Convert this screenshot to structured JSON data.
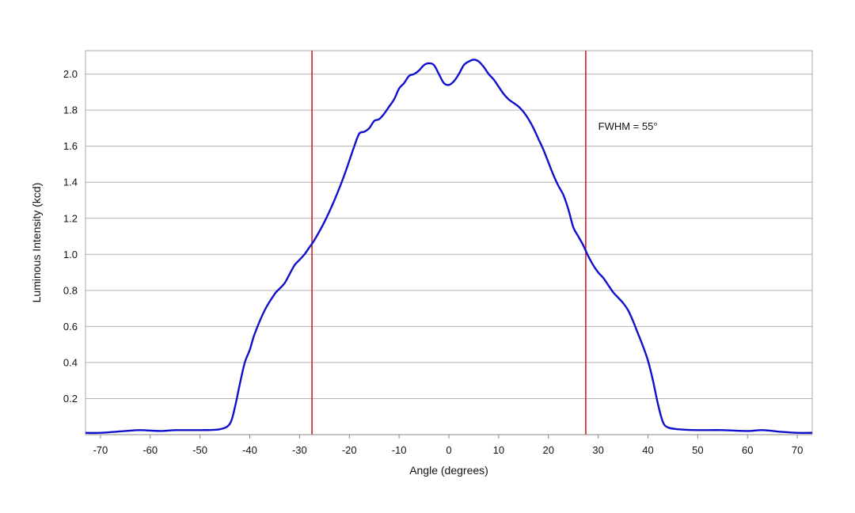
{
  "chart_data": {
    "type": "line",
    "title": "",
    "xlabel": "Angle (degrees)",
    "ylabel": "Luminous Intensity (kcd)",
    "xlim": [
      -73,
      73
    ],
    "ylim": [
      0,
      2.13
    ],
    "xticks": [
      -70,
      -60,
      -50,
      -40,
      -30,
      -20,
      -10,
      0,
      10,
      20,
      30,
      40,
      50,
      60,
      70
    ],
    "yticks": [
      0.2,
      0.4,
      0.6,
      0.8,
      1.0,
      1.2,
      1.4,
      1.6,
      1.8,
      2.0
    ],
    "ytick_labels": [
      "0.2",
      "0.4",
      "0.6",
      "0.8",
      "1.0",
      "1.2",
      "1.4",
      "1.6",
      "1.8",
      "2.0"
    ],
    "grid": "horizontal",
    "line_color": "#1010cc",
    "marker_color": "#cc2222",
    "series": [
      {
        "x": [
          -73,
          -70,
          -65,
          -62,
          -58,
          -55,
          -50,
          -46,
          -44,
          -43,
          -42,
          -41,
          -40,
          -39,
          -37,
          -35,
          -34,
          -33,
          -32,
          -31,
          -30,
          -29,
          -28,
          -27,
          -25,
          -23,
          -21,
          -19,
          -18,
          -17,
          -16,
          -15,
          -14,
          -13,
          -12,
          -11,
          -10,
          -9,
          -8,
          -7,
          -6,
          -5,
          -4,
          -3,
          -2,
          -1,
          0,
          1,
          2,
          3,
          4,
          5,
          6,
          7,
          8,
          9,
          10,
          11,
          12,
          13,
          14,
          15,
          16,
          17,
          18,
          19,
          20,
          21,
          22,
          23,
          24,
          25,
          26,
          27,
          28,
          29,
          30,
          31,
          32,
          33,
          34,
          35,
          36,
          37,
          38,
          39,
          40,
          41,
          42,
          43,
          44,
          46,
          50,
          55,
          60,
          63,
          67,
          70,
          73
        ],
        "y": [
          0.01,
          0.01,
          0.02,
          0.025,
          0.02,
          0.025,
          0.025,
          0.03,
          0.06,
          0.15,
          0.28,
          0.4,
          0.47,
          0.56,
          0.69,
          0.78,
          0.81,
          0.84,
          0.89,
          0.94,
          0.97,
          1.0,
          1.04,
          1.08,
          1.18,
          1.3,
          1.44,
          1.6,
          1.67,
          1.68,
          1.7,
          1.74,
          1.75,
          1.78,
          1.82,
          1.86,
          1.92,
          1.95,
          1.99,
          2.0,
          2.02,
          2.05,
          2.06,
          2.05,
          2.0,
          1.95,
          1.94,
          1.96,
          2.0,
          2.05,
          2.07,
          2.08,
          2.07,
          2.04,
          2.0,
          1.97,
          1.93,
          1.89,
          1.86,
          1.84,
          1.82,
          1.79,
          1.75,
          1.7,
          1.64,
          1.58,
          1.51,
          1.44,
          1.38,
          1.33,
          1.25,
          1.15,
          1.1,
          1.05,
          0.99,
          0.94,
          0.9,
          0.87,
          0.83,
          0.79,
          0.76,
          0.73,
          0.69,
          0.63,
          0.56,
          0.49,
          0.41,
          0.3,
          0.17,
          0.07,
          0.04,
          0.03,
          0.025,
          0.025,
          0.02,
          0.025,
          0.015,
          0.01,
          0.01
        ]
      }
    ],
    "markers": [
      {
        "x": -27.5
      },
      {
        "x": 27.5
      }
    ],
    "annotations": [
      {
        "text": "FWHM = 55°",
        "x": 30,
        "y": 1.69
      }
    ]
  }
}
